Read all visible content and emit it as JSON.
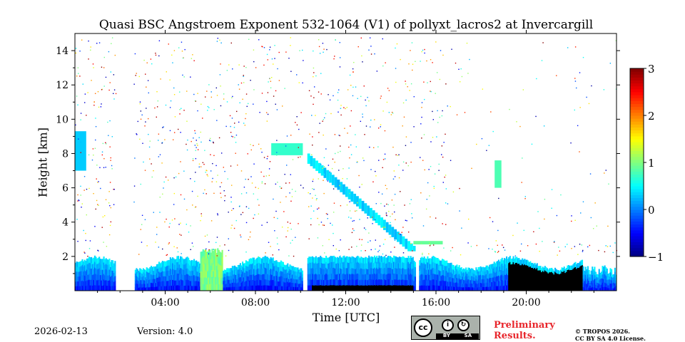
{
  "chart_data": {
    "type": "heatmap",
    "title": "Quasi BSC Angstroem Exponent 532-1064 (V1) of pollyxt_lacros2 at Invercargill",
    "xlabel": "Time [UTC]",
    "ylabel": "Height [km]",
    "x_range_hours": [
      0,
      24
    ],
    "y_range_km": [
      0,
      15
    ],
    "x_ticks": [
      4,
      8,
      12,
      16,
      20
    ],
    "x_tick_labels": [
      "04:00",
      "08:00",
      "12:00",
      "16:00",
      "20:00"
    ],
    "y_ticks": [
      2,
      4,
      6,
      8,
      10,
      12,
      14
    ],
    "y_tick_labels": [
      "2",
      "4",
      "6",
      "8",
      "10",
      "12",
      "14"
    ],
    "colorbar": {
      "range": [
        -1,
        3
      ],
      "ticks": [
        -1,
        0,
        1,
        2,
        3
      ],
      "tick_labels": [
        "−1",
        "0",
        "1",
        "2",
        "3"
      ],
      "colormap": "jet"
    },
    "data_gaps_hours": [
      [
        1.8,
        2.6
      ],
      [
        10.1,
        10.3
      ],
      [
        15.1,
        15.25
      ]
    ],
    "features": [
      {
        "name": "boundary layer aerosol",
        "t_start": 0,
        "t_end": 24,
        "height_top_km": 2.0,
        "value": 0.2
      },
      {
        "name": "convective plume",
        "t_start": 5.5,
        "t_end": 6.5,
        "height_top_km": 2.5,
        "value": 1.1
      },
      {
        "name": "elevated layer",
        "t_start": 8.7,
        "t_end": 10.1,
        "height_top_km": 8.5,
        "value": 0.7
      },
      {
        "name": "descending cloud",
        "t_start": 10.3,
        "t_end": 15.0,
        "height_top_km": 8.0,
        "value": 0.3
      },
      {
        "name": "cloud at start",
        "t_start": 0.0,
        "t_end": 0.5,
        "height_top_km": 9.5,
        "value": 0.4
      },
      {
        "name": "cloud near 19h",
        "t_start": 18.6,
        "t_end": 18.9,
        "height_top_km": 7.5,
        "value": 0.6
      }
    ]
  },
  "footer": {
    "date": "2026-02-13",
    "version": "Version: 4.0",
    "preliminary_line1": "Preliminary",
    "preliminary_line2": "Results.",
    "copyright_line1": "© TROPOS 2026.",
    "copyright_line2": "CC BY SA 4.0 License.",
    "cc_badge": {
      "main": "cc",
      "by": "BY",
      "sa": "SA"
    }
  },
  "colors": {
    "low": "#00008f",
    "mid": "#7fff7f",
    "high": "#7f0000",
    "saturated_region": "#000000"
  }
}
